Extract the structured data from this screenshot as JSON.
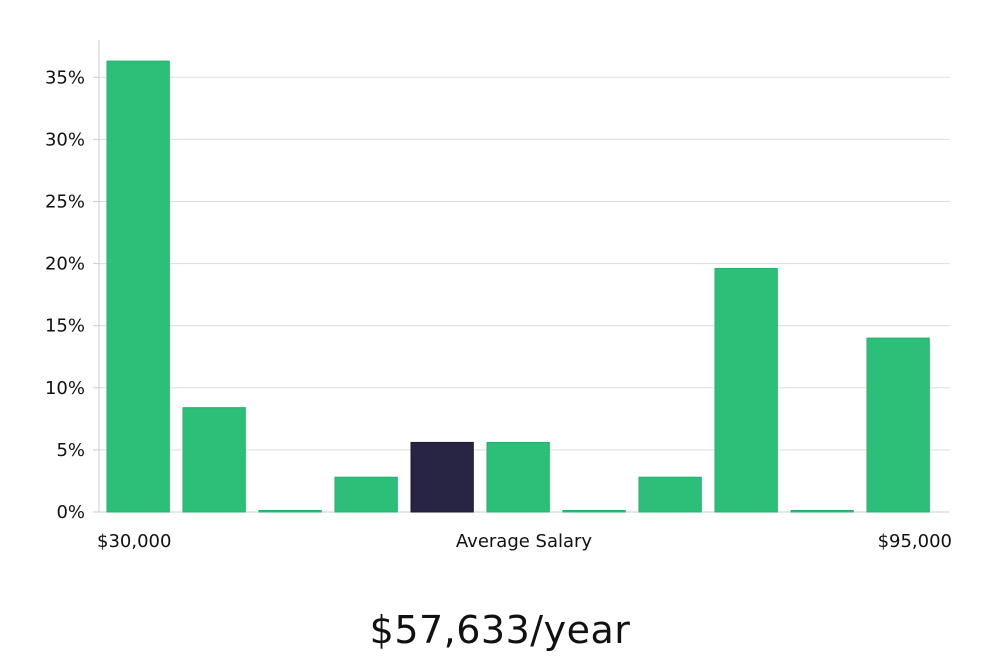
{
  "chart_data": {
    "type": "bar",
    "categories": [
      "b1",
      "b2",
      "b3",
      "b4",
      "b5",
      "b6",
      "b7",
      "b8",
      "b9",
      "b10",
      "b11"
    ],
    "values": [
      36.3,
      8.4,
      0,
      2.8,
      5.6,
      5.6,
      0,
      2.8,
      19.6,
      0,
      14.0
    ],
    "highlight_index": 4,
    "ylim": [
      0,
      38
    ],
    "yticks": [
      0,
      5,
      10,
      15,
      20,
      25,
      30,
      35
    ],
    "ytick_suffix": "%",
    "x_range_labels": {
      "min": "$30,000",
      "max": "$95,000"
    },
    "xlabel": "Average Salary",
    "grid": true,
    "colors": {
      "bar": "#2bbf78",
      "highlight": "#282443",
      "grid": "#dddddd",
      "axis": "#cccccc"
    }
  },
  "headline": "$57,633/year"
}
